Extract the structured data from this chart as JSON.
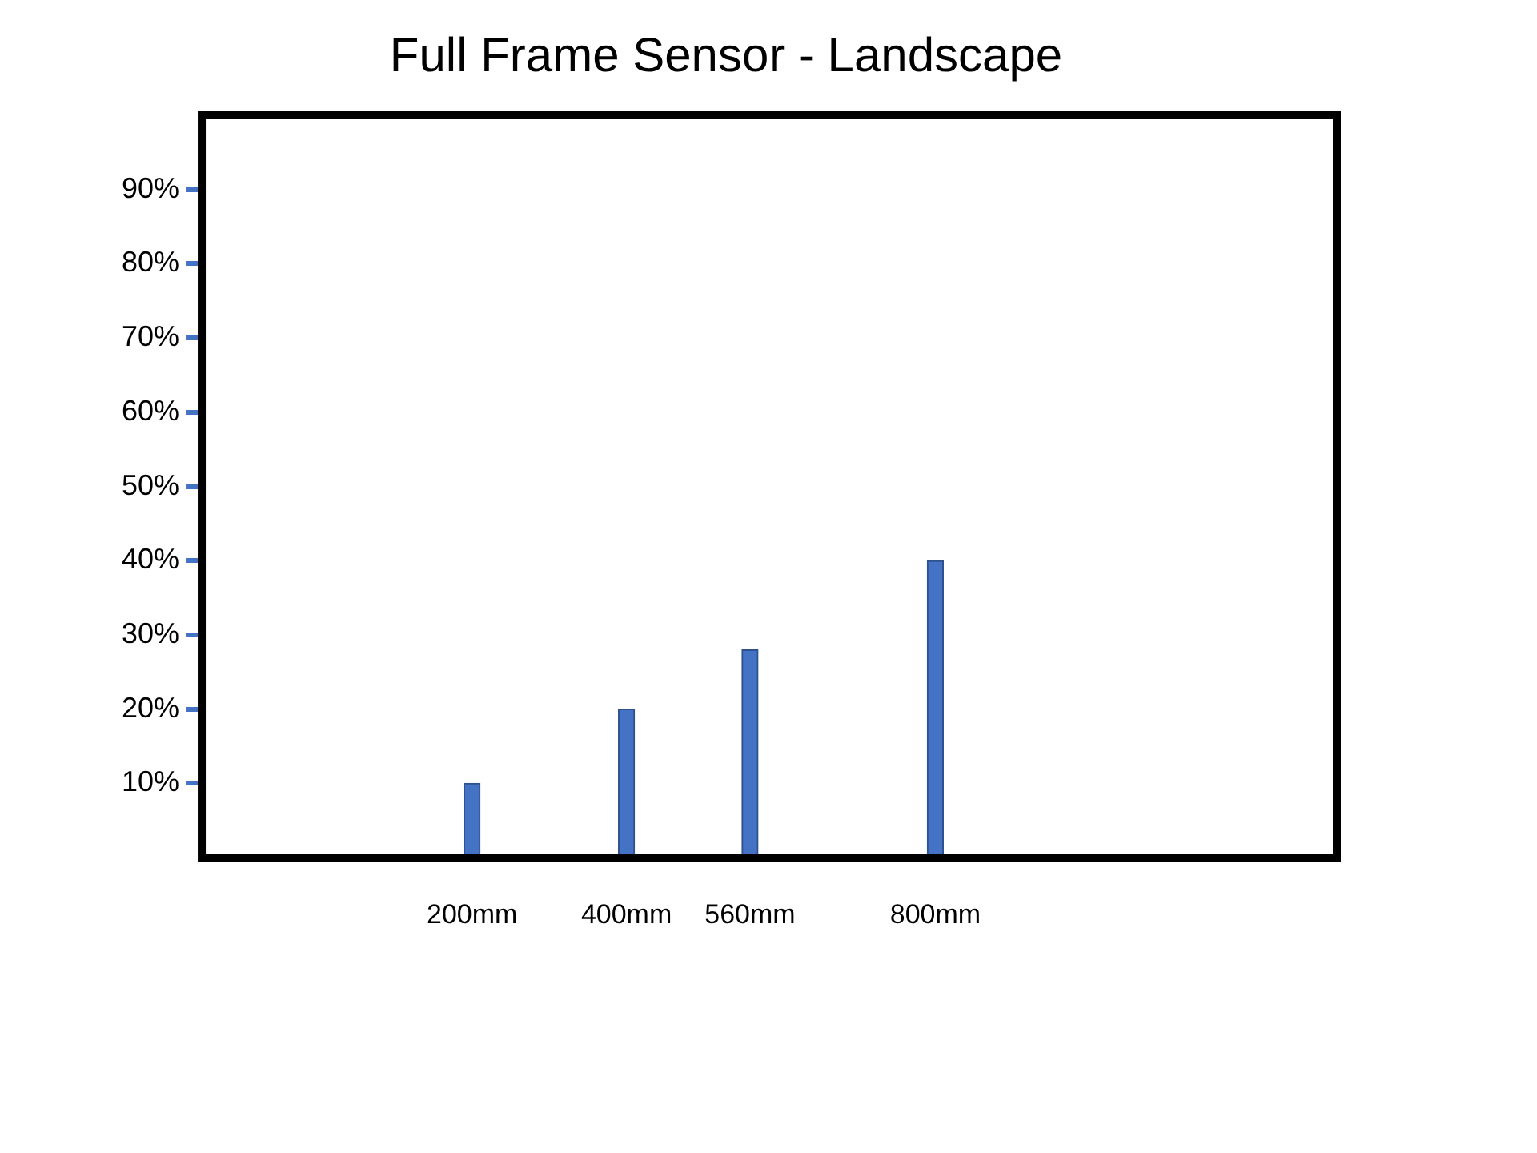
{
  "chart_data": {
    "type": "bar",
    "title": "Full Frame Sensor - Landscape",
    "x": [
      200,
      400,
      560,
      800
    ],
    "values": [
      10,
      20,
      28,
      40
    ],
    "color": "#4472c4",
    "xlim": [
      -150,
      1320
    ],
    "xticks": [
      {
        "value": 200,
        "label": "200mm"
      },
      {
        "value": 400,
        "label": "400mm"
      },
      {
        "value": 560,
        "label": "560mm"
      },
      {
        "value": 800,
        "label": "800mm"
      }
    ],
    "ylim": [
      0,
      100
    ],
    "yticks": [
      {
        "value": 10,
        "label": "10%"
      },
      {
        "value": 20,
        "label": "20%"
      },
      {
        "value": 30,
        "label": "30%"
      },
      {
        "value": 40,
        "label": "40%"
      },
      {
        "value": 50,
        "label": "50%"
      },
      {
        "value": 60,
        "label": "60%"
      },
      {
        "value": 70,
        "label": "70%"
      },
      {
        "value": 80,
        "label": "80%"
      },
      {
        "value": 90,
        "label": "90%"
      }
    ]
  }
}
